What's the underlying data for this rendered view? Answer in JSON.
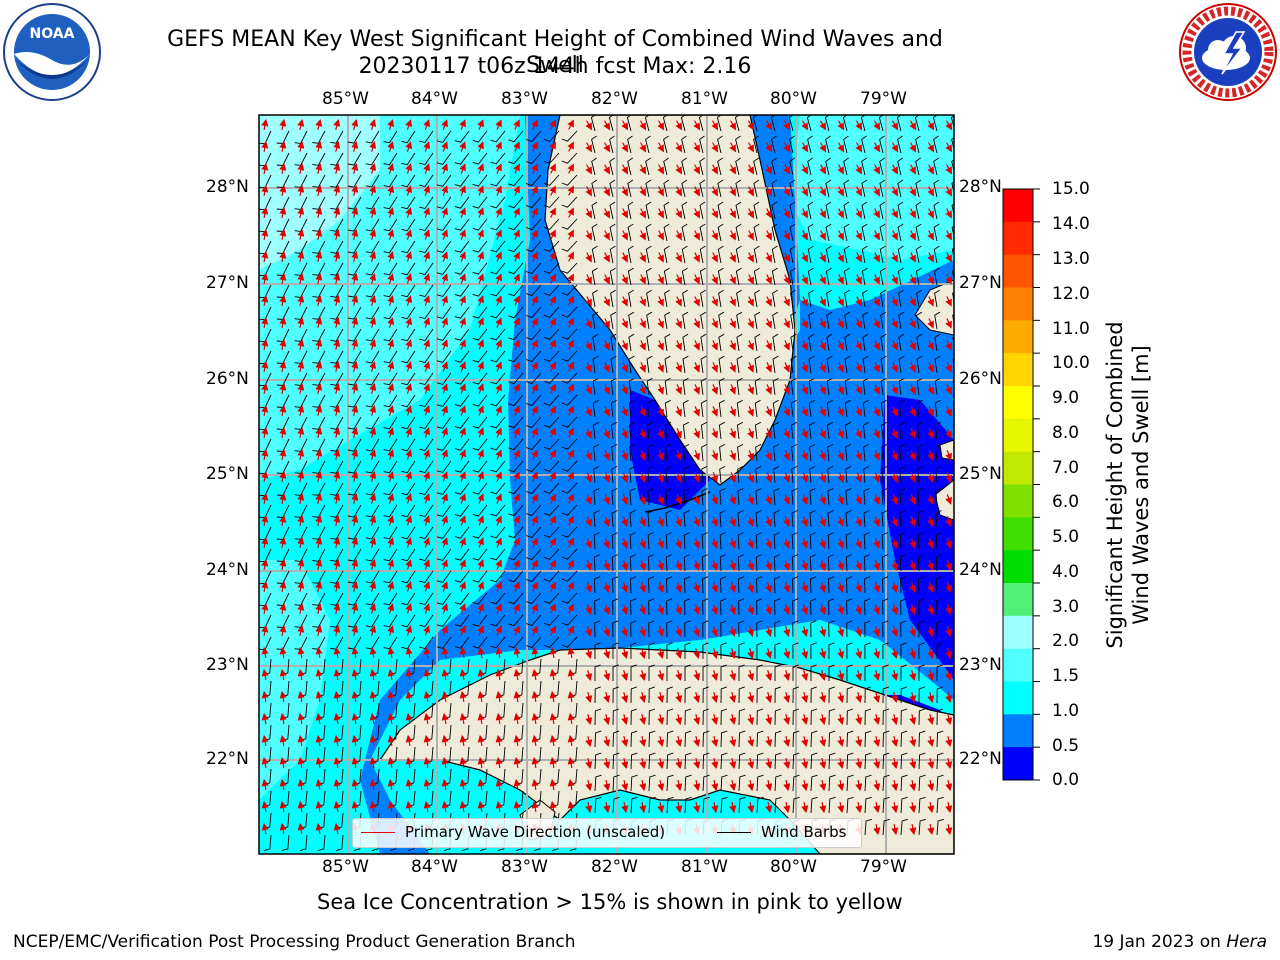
{
  "title": {
    "line1": "GEFS MEAN Key West Significant Height of Combined Wind Waves and Swell",
    "line2": "20230117 t06z 144h fcst   Max: 2.16"
  },
  "map": {
    "lon_labels": [
      "85°W",
      "84°W",
      "83°W",
      "82°W",
      "81°W",
      "80°W",
      "79°W"
    ],
    "lat_labels": [
      "28°N",
      "27°N",
      "26°N",
      "25°N",
      "24°N",
      "23°N",
      "22°N"
    ],
    "colors": {
      "land": "#efebd9",
      "coast": "#000000",
      "grid": "#b0b0b0",
      "wave_arrow": "#e00000",
      "wind_barb": "#000000"
    }
  },
  "colorbar": {
    "label_line1": "Significant Height of Combined",
    "label_line2": "Wind Waves and Swell [m]",
    "ticks": [
      "15.0",
      "14.0",
      "13.0",
      "12.0",
      "11.0",
      "10.0",
      "9.0",
      "8.0",
      "7.0",
      "6.0",
      "5.0",
      "4.0",
      "3.0",
      "2.0",
      "1.5",
      "1.0",
      "0.5",
      "0.0"
    ],
    "colors_top_to_bottom": [
      "#ff0000",
      "#ff2a00",
      "#ff5500",
      "#ff7f00",
      "#ffaa00",
      "#ffd400",
      "#ffff00",
      "#e6f500",
      "#c0e800",
      "#80e000",
      "#40dd00",
      "#00dd00",
      "#50f078",
      "#a0ffff",
      "#50ffff",
      "#00ffff",
      "#0080ff",
      "#0000ff"
    ]
  },
  "legend": {
    "wave_direction": "Primary Wave Direction (unscaled)",
    "wind_barbs": "Wind Barbs"
  },
  "note": "Sea Ice Concentration > 15% is shown in pink to yellow",
  "footer": {
    "left": "NCEP/EMC/Verification Post Processing Product Generation Branch",
    "right_date": "19 Jan 2023 on",
    "right_host": "Hera"
  },
  "logos": {
    "noaa_text": "NOAA",
    "nws_text": "NATIONAL WEATHER SERVICE"
  }
}
